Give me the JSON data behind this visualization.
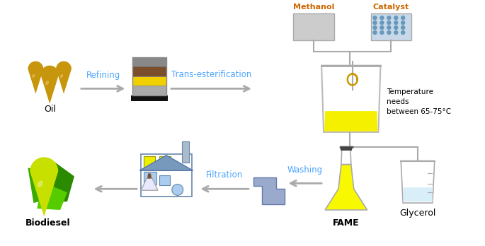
{
  "bg_color": "#ffffff",
  "label_refining": "Refining",
  "label_trans": "Trans-esterification",
  "label_filtration": "Filtration",
  "label_washing": "Washing",
  "label_oil": "Oil",
  "label_biodiesel": "Biodiesel",
  "label_fame": "FAME",
  "label_glycerol": "Glycerol",
  "label_methanol": "Methanol",
  "label_catalyst": "Catalyst",
  "label_temp": "Temperature\nneeds\nbetween 65-75°C",
  "label_color_blue": "#4da6ff",
  "label_color_orange": "#cc6600"
}
